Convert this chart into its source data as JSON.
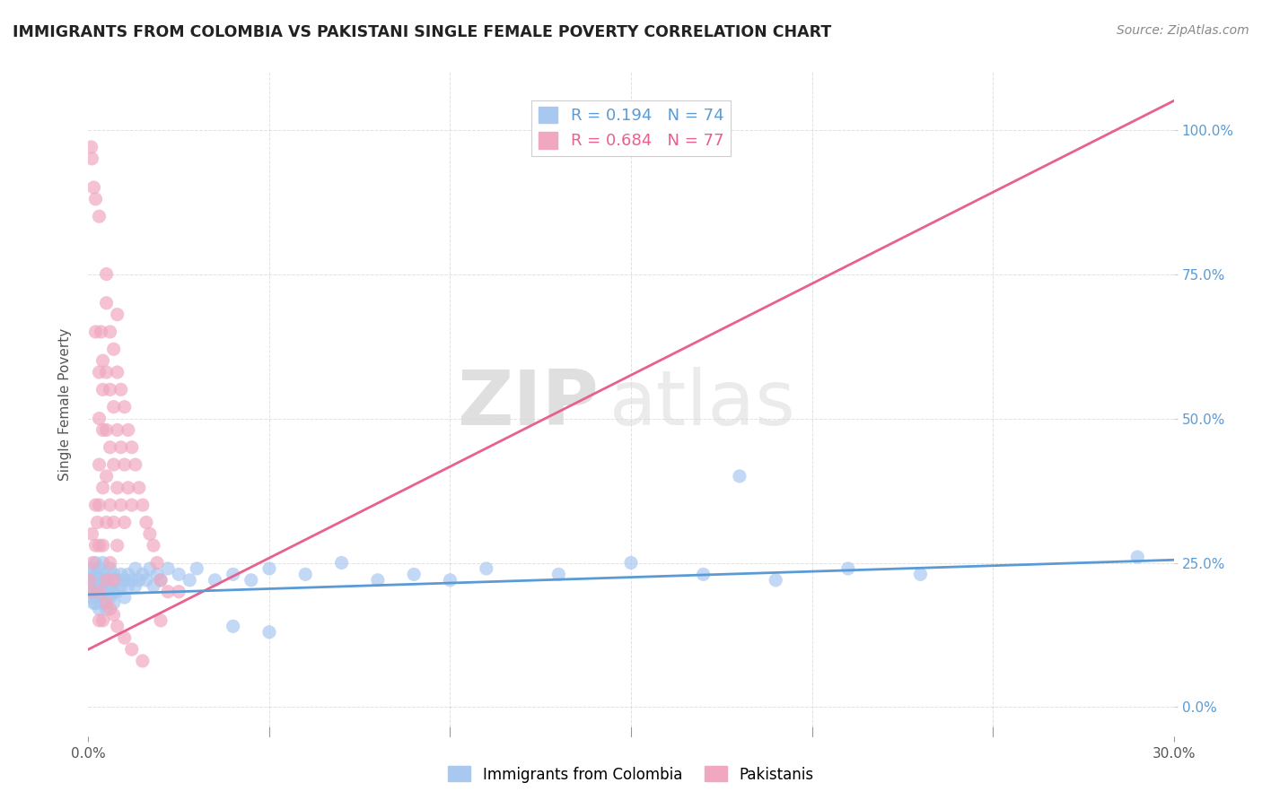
{
  "title": "IMMIGRANTS FROM COLOMBIA VS PAKISTANI SINGLE FEMALE POVERTY CORRELATION CHART",
  "source": "Source: ZipAtlas.com",
  "ylabel": "Single Female Poverty",
  "xlim": [
    0.0,
    0.3
  ],
  "ylim": [
    -0.05,
    1.1
  ],
  "xtick_positions": [
    0.0,
    0.3
  ],
  "xtick_labels": [
    "0.0%",
    "30.0%"
  ],
  "yticks": [
    0.0,
    0.25,
    0.5,
    0.75,
    1.0
  ],
  "ytick_labels": [
    "0.0%",
    "25.0%",
    "50.0%",
    "75.0%",
    "100.0%"
  ],
  "grid_xticks": [
    0.0,
    0.05,
    0.1,
    0.15,
    0.2,
    0.25,
    0.3
  ],
  "colombia_color": "#a8c8f0",
  "pakistan_color": "#f0a8c0",
  "colombia_edge_color": "#7ab0e8",
  "pakistan_edge_color": "#e87aaa",
  "colombia_R": 0.194,
  "colombia_N": 74,
  "pakistan_R": 0.684,
  "pakistan_N": 77,
  "colombia_line_color": "#5b9bd5",
  "pakistan_line_color": "#e8618c",
  "watermark_zip": "ZIP",
  "watermark_atlas": "atlas",
  "legend_label_colombia": "Immigrants from Colombia",
  "legend_label_pakistan": "Pakistanis",
  "colombia_scatter": [
    [
      0.0005,
      0.22
    ],
    [
      0.0008,
      0.2
    ],
    [
      0.001,
      0.24
    ],
    [
      0.001,
      0.21
    ],
    [
      0.001,
      0.19
    ],
    [
      0.0012,
      0.23
    ],
    [
      0.0015,
      0.22
    ],
    [
      0.0015,
      0.18
    ],
    [
      0.002,
      0.25
    ],
    [
      0.002,
      0.22
    ],
    [
      0.002,
      0.2
    ],
    [
      0.002,
      0.18
    ],
    [
      0.0025,
      0.23
    ],
    [
      0.003,
      0.24
    ],
    [
      0.003,
      0.21
    ],
    [
      0.003,
      0.19
    ],
    [
      0.003,
      0.17
    ],
    [
      0.0035,
      0.22
    ],
    [
      0.004,
      0.25
    ],
    [
      0.004,
      0.22
    ],
    [
      0.004,
      0.2
    ],
    [
      0.004,
      0.18
    ],
    [
      0.0045,
      0.23
    ],
    [
      0.005,
      0.22
    ],
    [
      0.005,
      0.2
    ],
    [
      0.005,
      0.17
    ],
    [
      0.006,
      0.24
    ],
    [
      0.006,
      0.21
    ],
    [
      0.006,
      0.19
    ],
    [
      0.007,
      0.23
    ],
    [
      0.007,
      0.2
    ],
    [
      0.007,
      0.18
    ],
    [
      0.008,
      0.22
    ],
    [
      0.008,
      0.2
    ],
    [
      0.009,
      0.23
    ],
    [
      0.009,
      0.21
    ],
    [
      0.01,
      0.22
    ],
    [
      0.01,
      0.19
    ],
    [
      0.011,
      0.23
    ],
    [
      0.011,
      0.21
    ],
    [
      0.012,
      0.22
    ],
    [
      0.013,
      0.24
    ],
    [
      0.013,
      0.21
    ],
    [
      0.014,
      0.22
    ],
    [
      0.015,
      0.23
    ],
    [
      0.016,
      0.22
    ],
    [
      0.017,
      0.24
    ],
    [
      0.018,
      0.21
    ],
    [
      0.019,
      0.23
    ],
    [
      0.02,
      0.22
    ],
    [
      0.022,
      0.24
    ],
    [
      0.025,
      0.23
    ],
    [
      0.028,
      0.22
    ],
    [
      0.03,
      0.24
    ],
    [
      0.035,
      0.22
    ],
    [
      0.04,
      0.23
    ],
    [
      0.045,
      0.22
    ],
    [
      0.05,
      0.24
    ],
    [
      0.06,
      0.23
    ],
    [
      0.07,
      0.25
    ],
    [
      0.08,
      0.22
    ],
    [
      0.09,
      0.23
    ],
    [
      0.1,
      0.22
    ],
    [
      0.11,
      0.24
    ],
    [
      0.13,
      0.23
    ],
    [
      0.15,
      0.25
    ],
    [
      0.17,
      0.23
    ],
    [
      0.19,
      0.22
    ],
    [
      0.21,
      0.24
    ],
    [
      0.23,
      0.23
    ],
    [
      0.18,
      0.4
    ],
    [
      0.05,
      0.13
    ],
    [
      0.04,
      0.14
    ],
    [
      0.29,
      0.26
    ]
  ],
  "pakistan_scatter": [
    [
      0.0003,
      0.22
    ],
    [
      0.0005,
      0.2
    ],
    [
      0.0008,
      0.97
    ],
    [
      0.001,
      0.95
    ],
    [
      0.001,
      0.3
    ],
    [
      0.0012,
      0.25
    ],
    [
      0.0015,
      0.9
    ],
    [
      0.002,
      0.88
    ],
    [
      0.002,
      0.35
    ],
    [
      0.002,
      0.28
    ],
    [
      0.0025,
      0.32
    ],
    [
      0.003,
      0.85
    ],
    [
      0.003,
      0.5
    ],
    [
      0.003,
      0.42
    ],
    [
      0.003,
      0.35
    ],
    [
      0.003,
      0.28
    ],
    [
      0.003,
      0.2
    ],
    [
      0.0035,
      0.65
    ],
    [
      0.004,
      0.6
    ],
    [
      0.004,
      0.55
    ],
    [
      0.004,
      0.48
    ],
    [
      0.004,
      0.38
    ],
    [
      0.004,
      0.28
    ],
    [
      0.005,
      0.7
    ],
    [
      0.005,
      0.58
    ],
    [
      0.005,
      0.48
    ],
    [
      0.005,
      0.4
    ],
    [
      0.005,
      0.32
    ],
    [
      0.005,
      0.22
    ],
    [
      0.006,
      0.65
    ],
    [
      0.006,
      0.55
    ],
    [
      0.006,
      0.45
    ],
    [
      0.006,
      0.35
    ],
    [
      0.006,
      0.25
    ],
    [
      0.007,
      0.62
    ],
    [
      0.007,
      0.52
    ],
    [
      0.007,
      0.42
    ],
    [
      0.007,
      0.32
    ],
    [
      0.007,
      0.22
    ],
    [
      0.008,
      0.58
    ],
    [
      0.008,
      0.48
    ],
    [
      0.008,
      0.38
    ],
    [
      0.008,
      0.28
    ],
    [
      0.009,
      0.55
    ],
    [
      0.009,
      0.45
    ],
    [
      0.009,
      0.35
    ],
    [
      0.01,
      0.52
    ],
    [
      0.01,
      0.42
    ],
    [
      0.01,
      0.32
    ],
    [
      0.011,
      0.48
    ],
    [
      0.011,
      0.38
    ],
    [
      0.012,
      0.45
    ],
    [
      0.012,
      0.35
    ],
    [
      0.013,
      0.42
    ],
    [
      0.014,
      0.38
    ],
    [
      0.015,
      0.35
    ],
    [
      0.016,
      0.32
    ],
    [
      0.017,
      0.3
    ],
    [
      0.018,
      0.28
    ],
    [
      0.019,
      0.25
    ],
    [
      0.02,
      0.22
    ],
    [
      0.022,
      0.2
    ],
    [
      0.005,
      0.18
    ],
    [
      0.006,
      0.17
    ],
    [
      0.007,
      0.16
    ],
    [
      0.008,
      0.14
    ],
    [
      0.01,
      0.12
    ],
    [
      0.012,
      0.1
    ],
    [
      0.015,
      0.08
    ],
    [
      0.003,
      0.15
    ],
    [
      0.004,
      0.15
    ],
    [
      0.02,
      0.15
    ],
    [
      0.025,
      0.2
    ],
    [
      0.005,
      0.75
    ],
    [
      0.008,
      0.68
    ],
    [
      0.003,
      0.58
    ],
    [
      0.002,
      0.65
    ]
  ]
}
